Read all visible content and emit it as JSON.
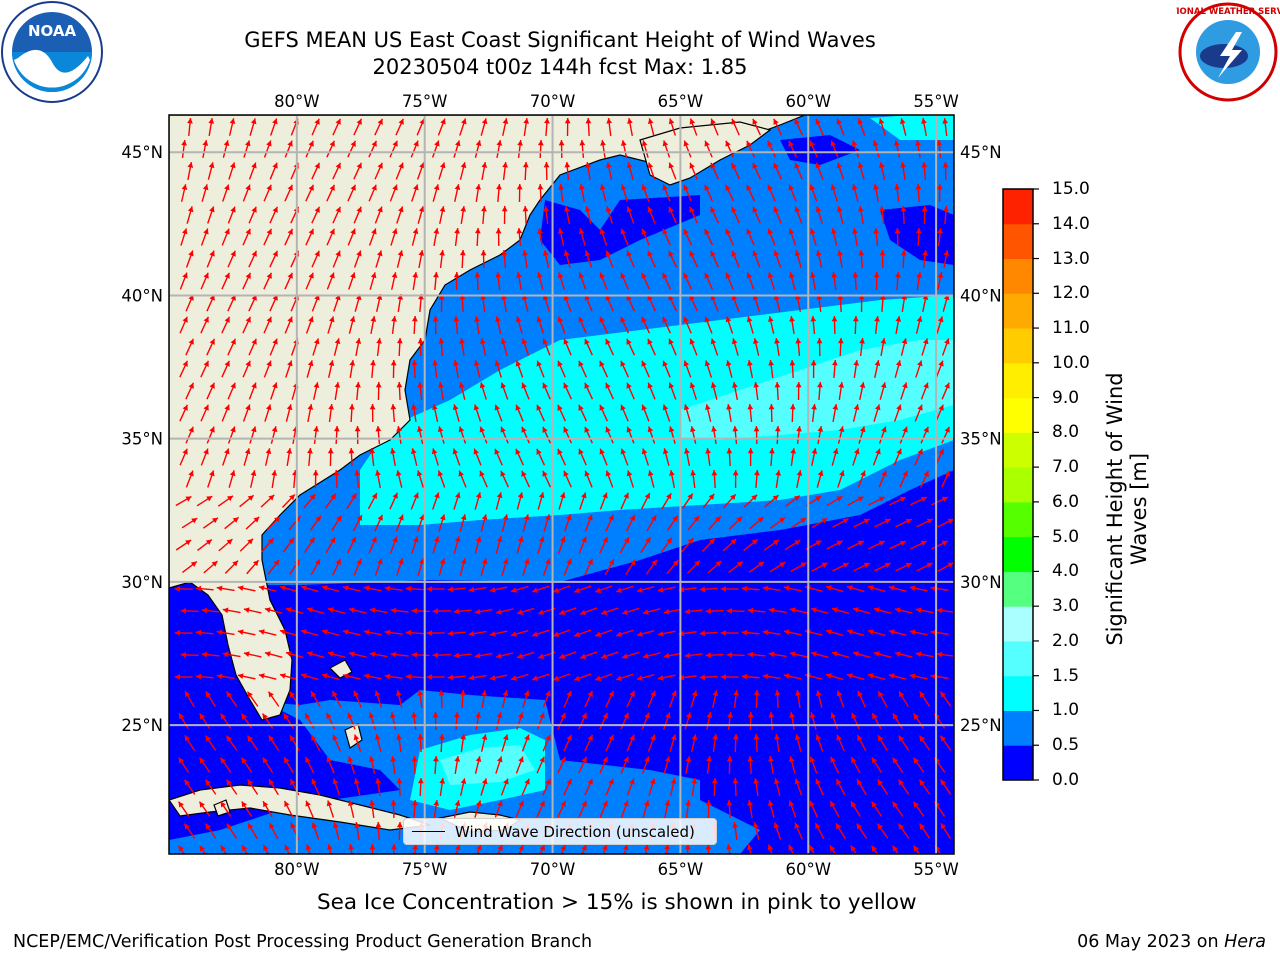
{
  "header": {
    "title_line1": "GEFS MEAN US East Coast Significant Height of Wind Waves",
    "title_line2": "20230504 t00z 144h fcst   Max: 1.85"
  },
  "logos": {
    "left": {
      "icon": "noaa-logo",
      "text": "NOAA"
    },
    "right": {
      "icon": "nws-logo",
      "text": "NATIONAL WEATHER SERVICE"
    }
  },
  "map": {
    "lon_labels": [
      "80°W",
      "75°W",
      "70°W",
      "65°W",
      "60°W",
      "55°W"
    ],
    "lat_labels": [
      "45°N",
      "40°N",
      "35°N",
      "30°N",
      "25°N"
    ],
    "lon_range": [
      -85,
      -54.3
    ],
    "lat_range": [
      20.5,
      46.3
    ],
    "land_color": "#eeeedc",
    "vector_color": "#ff0000",
    "grid_color": "#b4b4b4"
  },
  "colorbar": {
    "title": "Significant Height of Wind Waves [m]",
    "levels": [
      "0.0",
      "0.5",
      "1.0",
      "1.5",
      "2.0",
      "3.0",
      "4.0",
      "5.0",
      "6.0",
      "7.0",
      "8.0",
      "9.0",
      "10.0",
      "11.0",
      "12.0",
      "13.0",
      "14.0",
      "15.0"
    ],
    "colors": [
      "#0000ff",
      "#007fff",
      "#00ffff",
      "#55ffff",
      "#aaffff",
      "#55ff7f",
      "#00ff00",
      "#55ff00",
      "#aaff00",
      "#ccff00",
      "#ffff00",
      "#ffee00",
      "#ffcc00",
      "#ffaa00",
      "#ff8800",
      "#ff5500",
      "#ff2200"
    ]
  },
  "legend": {
    "label": "Wind Wave Direction (unscaled)"
  },
  "notes": {
    "sea_ice": "Sea Ice Concentration > 15% is shown in pink to yellow"
  },
  "footer": {
    "left": "NCEP/EMC/Verification Post Processing Product Generation Branch",
    "date": "06 May 2023 on ",
    "host": "Hera"
  }
}
